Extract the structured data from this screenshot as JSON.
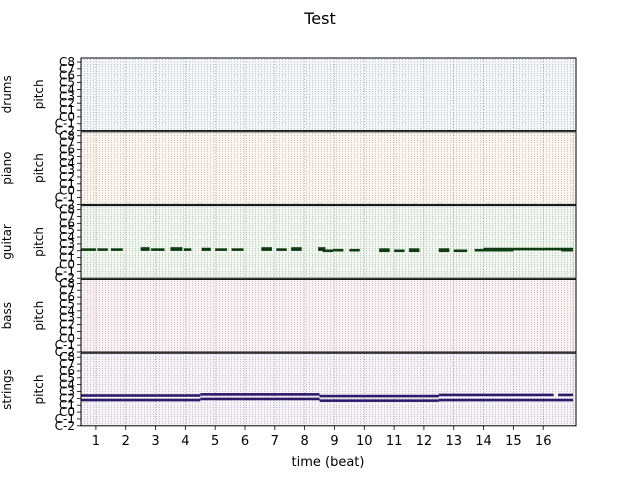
{
  "chart_data": {
    "type": "pianoroll",
    "title": "Test",
    "xlabel": "time (beat)",
    "xlim": [
      0.5,
      17.1
    ],
    "x_ticks": [
      "1",
      "2",
      "3",
      "4",
      "5",
      "6",
      "7",
      "8",
      "9",
      "10",
      "11",
      "12",
      "13",
      "14",
      "15",
      "16"
    ],
    "pitch_ticks": [
      "C-2",
      "C-1",
      "C0",
      "C1",
      "C2",
      "C3",
      "C4",
      "C5",
      "C6",
      "C7",
      "C8"
    ],
    "pitch_axis_label": "pitch",
    "grid": true,
    "tracks": [
      {
        "name": "drums",
        "bg": "#f4f7fb",
        "note_color": "#1f4e79",
        "notes": []
      },
      {
        "name": "piano",
        "bg": "#fcf6ef",
        "note_color": "#7a3f00",
        "notes": []
      },
      {
        "name": "guitar",
        "bg": "#f1f8ef",
        "note_color": "#0f3d12",
        "notes": [
          {
            "start": 0.5,
            "end": 1.0,
            "pitch": 50
          },
          {
            "start": 1.05,
            "end": 1.4,
            "pitch": 50
          },
          {
            "start": 1.5,
            "end": 1.9,
            "pitch": 50
          },
          {
            "start": 2.5,
            "end": 2.8,
            "pitch": 52
          },
          {
            "start": 2.5,
            "end": 2.8,
            "pitch": 50
          },
          {
            "start": 2.85,
            "end": 3.3,
            "pitch": 50
          },
          {
            "start": 3.5,
            "end": 3.9,
            "pitch": 52
          },
          {
            "start": 3.5,
            "end": 3.9,
            "pitch": 50
          },
          {
            "start": 3.95,
            "end": 4.2,
            "pitch": 50
          },
          {
            "start": 4.55,
            "end": 4.85,
            "pitch": 51
          },
          {
            "start": 4.55,
            "end": 4.85,
            "pitch": 50
          },
          {
            "start": 5.0,
            "end": 5.4,
            "pitch": 50
          },
          {
            "start": 5.55,
            "end": 5.95,
            "pitch": 50
          },
          {
            "start": 6.55,
            "end": 6.9,
            "pitch": 52
          },
          {
            "start": 6.55,
            "end": 6.9,
            "pitch": 50
          },
          {
            "start": 7.05,
            "end": 7.4,
            "pitch": 50
          },
          {
            "start": 7.55,
            "end": 7.9,
            "pitch": 52
          },
          {
            "start": 7.55,
            "end": 7.9,
            "pitch": 50
          },
          {
            "start": 8.45,
            "end": 8.7,
            "pitch": 52
          },
          {
            "start": 8.45,
            "end": 8.7,
            "pitch": 50
          },
          {
            "start": 8.6,
            "end": 8.95,
            "pitch": 48
          },
          {
            "start": 8.95,
            "end": 9.3,
            "pitch": 49
          },
          {
            "start": 9.5,
            "end": 9.85,
            "pitch": 49
          },
          {
            "start": 10.5,
            "end": 10.85,
            "pitch": 50
          },
          {
            "start": 10.5,
            "end": 10.85,
            "pitch": 48
          },
          {
            "start": 11.0,
            "end": 11.35,
            "pitch": 48
          },
          {
            "start": 11.5,
            "end": 11.85,
            "pitch": 50
          },
          {
            "start": 11.5,
            "end": 11.85,
            "pitch": 48
          },
          {
            "start": 12.5,
            "end": 12.85,
            "pitch": 50
          },
          {
            "start": 12.5,
            "end": 12.85,
            "pitch": 48
          },
          {
            "start": 13.0,
            "end": 13.45,
            "pitch": 48
          },
          {
            "start": 13.7,
            "end": 14.0,
            "pitch": 49
          },
          {
            "start": 14.0,
            "end": 17.0,
            "pitch": 51
          },
          {
            "start": 14.0,
            "end": 15.0,
            "pitch": 49
          },
          {
            "start": 16.6,
            "end": 17.0,
            "pitch": 49
          }
        ]
      },
      {
        "name": "bass",
        "bg": "#fbf3f3",
        "note_color": "#5c0a0a",
        "notes": []
      },
      {
        "name": "strings",
        "bg": "#f6f3fb",
        "note_color": "#2e1a6b",
        "notes": [
          {
            "start": 0.5,
            "end": 4.5,
            "pitch": 53
          },
          {
            "start": 0.5,
            "end": 4.5,
            "pitch": 45
          },
          {
            "start": 4.5,
            "end": 8.5,
            "pitch": 55
          },
          {
            "start": 4.5,
            "end": 8.5,
            "pitch": 47
          },
          {
            "start": 8.5,
            "end": 12.5,
            "pitch": 52
          },
          {
            "start": 8.5,
            "end": 12.5,
            "pitch": 44
          },
          {
            "start": 12.5,
            "end": 16.35,
            "pitch": 54
          },
          {
            "start": 16.5,
            "end": 17.0,
            "pitch": 54
          },
          {
            "start": 12.5,
            "end": 17.0,
            "pitch": 45
          }
        ]
      }
    ]
  }
}
